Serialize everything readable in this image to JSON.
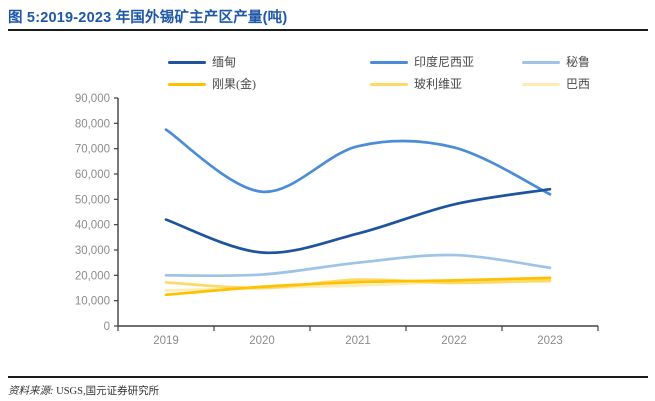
{
  "header": {
    "title": "图 5:2019-2023 年国外锡矿主产区产量(吨)"
  },
  "colors": {
    "title": "#1F57A8",
    "rule": "#1A1A1A",
    "axis": "#404040",
    "tick_label": "#8C8C8C",
    "legend_label": "#4A4A4A"
  },
  "chart_data": {
    "type": "line",
    "title": "2019-2023 年国外锡矿主产区产量(吨)",
    "categories": [
      "2019",
      "2020",
      "2021",
      "2022",
      "2023"
    ],
    "series": [
      {
        "key": "myanmar",
        "name": "缅甸",
        "color": "#1E549F",
        "values": [
          42000,
          29000,
          36500,
          48000,
          54000
        ]
      },
      {
        "key": "indonesia",
        "name": "印度尼西亚",
        "color": "#4A8CD8",
        "values": [
          77500,
          53000,
          71000,
          70500,
          52000
        ]
      },
      {
        "key": "peru",
        "name": "秘鲁",
        "color": "#9DC3E6",
        "values": [
          20000,
          20300,
          25000,
          28000,
          23000
        ]
      },
      {
        "key": "drc",
        "name": "刚果(金)",
        "color": "#FFC000",
        "values": [
          12300,
          15500,
          17300,
          18000,
          19000
        ]
      },
      {
        "key": "bolivia",
        "name": "玻利维亚",
        "color": "#FFD966",
        "values": [
          17200,
          15000,
          18300,
          17000,
          18000
        ]
      },
      {
        "key": "brazil",
        "name": "巴西",
        "color": "#FFECB3",
        "values": [
          14000,
          15000,
          16000,
          17400,
          17500
        ]
      }
    ],
    "ylim": [
      0,
      90000
    ],
    "y_tick_step": 10000,
    "y_tick_labels": [
      "0",
      "10,000",
      "20,000",
      "30,000",
      "40,000",
      "50,000",
      "60,000",
      "70,000",
      "80,000",
      "90,000"
    ],
    "xlabel": "",
    "ylabel": "",
    "grid": false,
    "smooth": true,
    "legend_position": "top"
  },
  "footer": {
    "source_label": "资料来源:",
    "source_value": "USGS,国元证券研究所"
  }
}
